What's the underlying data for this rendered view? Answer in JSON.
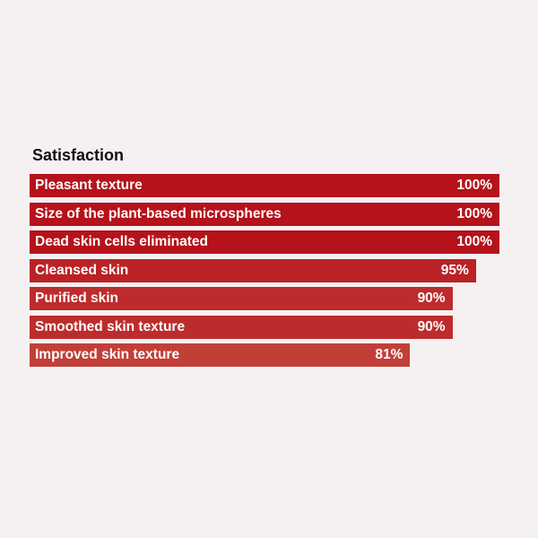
{
  "chart_data": {
    "type": "bar",
    "orientation": "horizontal",
    "title": "Satisfaction",
    "categories": [
      "Pleasant texture",
      "Size of the plant-based microspheres",
      "Dead skin cells eliminated",
      "Cleansed skin",
      "Purified skin",
      "Smoothed skin texture",
      "Improved skin texture"
    ],
    "values": [
      100,
      100,
      100,
      95,
      90,
      90,
      81
    ],
    "value_labels": [
      "100%",
      "100%",
      "100%",
      "95%",
      "90%",
      "90%",
      "81%"
    ],
    "xlim": [
      0,
      100
    ],
    "colors": [
      "#b5121b",
      "#b5121b",
      "#b5121b",
      "#ba2226",
      "#bd2c2c",
      "#bd2c2c",
      "#c23f38"
    ]
  }
}
